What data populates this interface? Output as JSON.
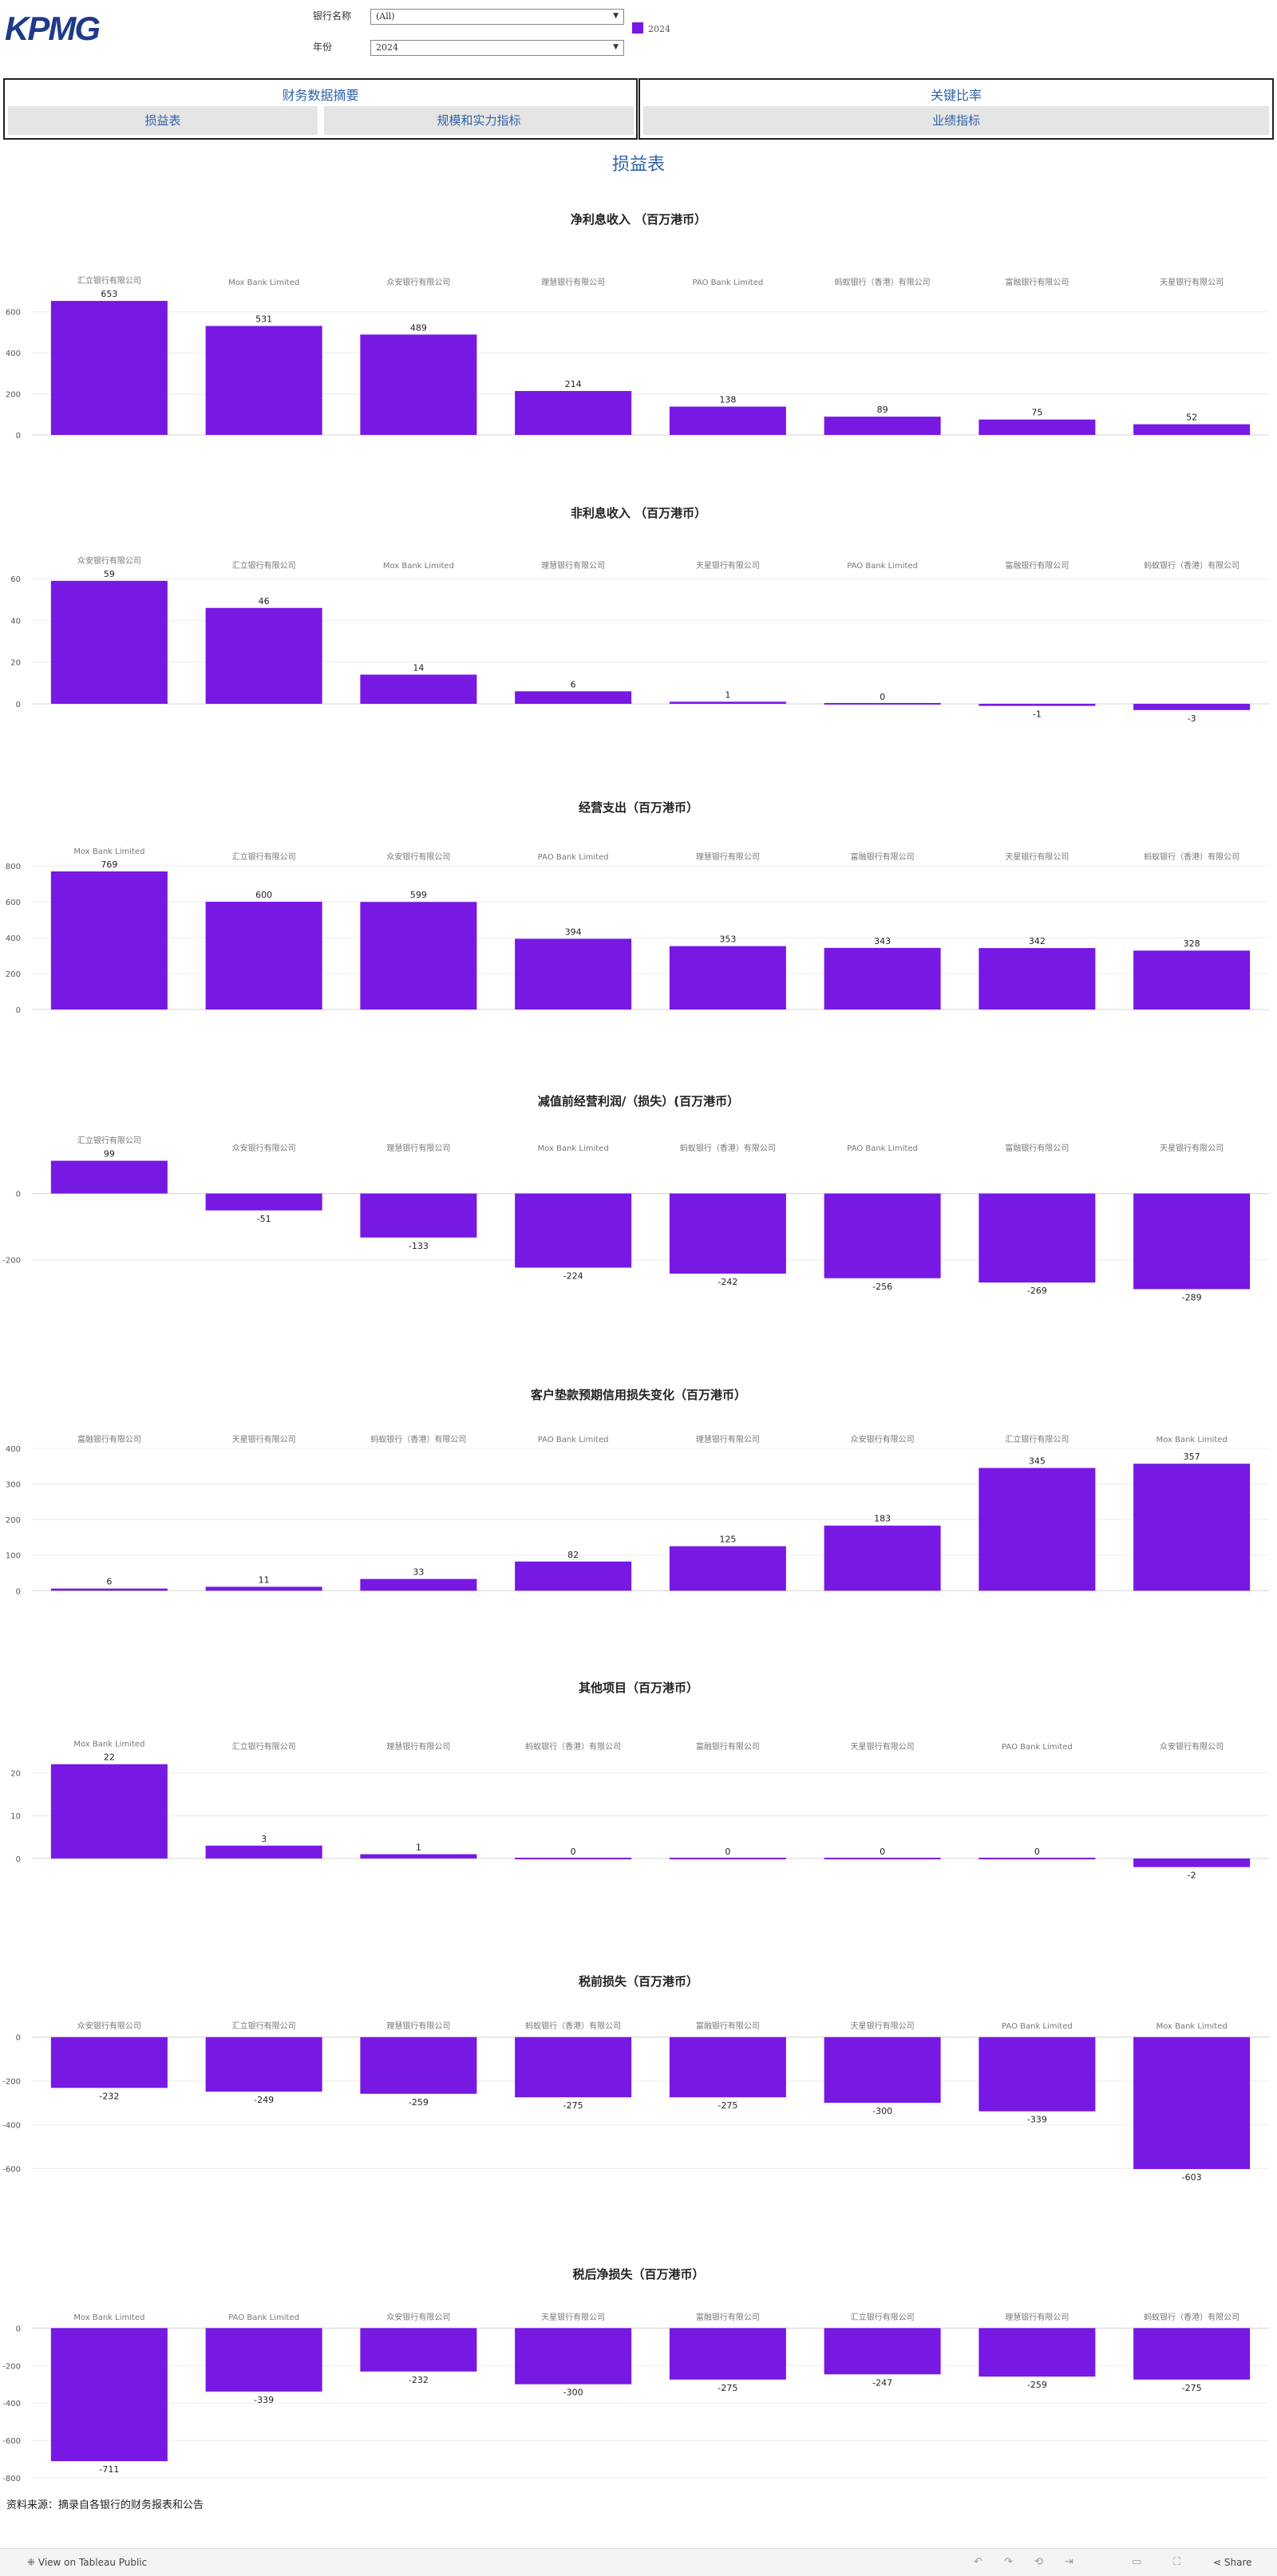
{
  "header": {
    "logo": "KPMG",
    "filters": [
      {
        "label": "银行名称",
        "value": "(All)"
      },
      {
        "label": "年份",
        "value": "2024"
      }
    ],
    "legend": {
      "label": "2024",
      "color": "#7718e3"
    }
  },
  "nav": {
    "groups": [
      {
        "title": "财务数据摘要",
        "tabs": [
          "损益表",
          "规模和实力指标"
        ]
      },
      {
        "title": "关键比率",
        "tabs": [
          "业绩指标"
        ]
      }
    ]
  },
  "page_title": "损益表",
  "chart_data": [
    {
      "type": "bar",
      "title": "净利息收入 （百万港币）",
      "categories": [
        "汇立银行有限公司",
        "Mox Bank Limited",
        "众安银行有限公司",
        "理慧银行有限公司",
        "PAO Bank Limited",
        "蚂蚁银行（香港）有限公司",
        "富融银行有限公司",
        "天星银行有限公司"
      ],
      "values": [
        653,
        531,
        489,
        214,
        138,
        89,
        75,
        52
      ],
      "ylim": [
        0,
        700
      ],
      "yticks": [
        0,
        200,
        400,
        600
      ],
      "grid": true
    },
    {
      "type": "bar",
      "title": "非利息收入 （百万港币）",
      "categories": [
        "众安银行有限公司",
        "汇立银行有限公司",
        "Mox Bank Limited",
        "理慧银行有限公司",
        "天星银行有限公司",
        "PAO Bank Limited",
        "富融银行有限公司",
        "蚂蚁银行（香港）有限公司"
      ],
      "values": [
        59,
        46,
        14,
        6,
        1,
        0,
        -1,
        -3
      ],
      "ylim": [
        -5,
        62
      ],
      "yticks": [
        0,
        20,
        40,
        60
      ],
      "grid": true
    },
    {
      "type": "bar",
      "title": "经营支出（百万港币）",
      "categories": [
        "Mox Bank Limited",
        "汇立银行有限公司",
        "众安银行有限公司",
        "PAO Bank Limited",
        "理慧银行有限公司",
        "富融银行有限公司",
        "天星银行有限公司",
        "蚂蚁银行（香港）有限公司"
      ],
      "values": [
        769,
        600,
        599,
        394,
        353,
        343,
        342,
        328
      ],
      "ylim": [
        0,
        800
      ],
      "yticks": [
        0,
        200,
        400,
        600,
        800
      ],
      "grid": true
    },
    {
      "type": "bar",
      "title": "减值前经营利润/（损失）(百万港币）",
      "categories": [
        "汇立银行有限公司",
        "众安银行有限公司",
        "理慧银行有限公司",
        "Mox Bank Limited",
        "蚂蚁银行（香港）有限公司",
        "PAO Bank Limited",
        "富融银行有限公司",
        "天星银行有限公司"
      ],
      "values": [
        99,
        -51,
        -133,
        -224,
        -242,
        -256,
        -269,
        -289
      ],
      "ylim": [
        -300,
        110
      ],
      "yticks": [
        -200,
        0
      ],
      "grid": true
    },
    {
      "type": "bar",
      "title": "客户垫款预期信用损失变化（百万港币）",
      "categories": [
        "富融银行有限公司",
        "天星银行有限公司",
        "蚂蚁银行（香港）有限公司",
        "PAO Bank Limited",
        "理慧银行有限公司",
        "众安银行有限公司",
        "汇立银行有限公司",
        "Mox Bank Limited"
      ],
      "values": [
        6,
        11,
        33,
        82,
        125,
        183,
        345,
        357
      ],
      "ylim": [
        -15,
        400
      ],
      "yticks": [
        0,
        100,
        200,
        300,
        400
      ],
      "grid": true
    },
    {
      "type": "bar",
      "title": "其他项目（百万港币）",
      "categories": [
        "Mox Bank Limited",
        "汇立银行有限公司",
        "理慧银行有限公司",
        "蚂蚁银行（香港）有限公司",
        "富融银行有限公司",
        "天星银行有限公司",
        "PAO Bank Limited",
        "众安银行有限公司"
      ],
      "values": [
        22,
        3,
        1,
        0,
        0,
        0,
        0,
        -2
      ],
      "ylim": [
        -3,
        24
      ],
      "yticks": [
        0,
        10,
        20
      ],
      "grid": true
    },
    {
      "type": "bar",
      "title": "税前损失（百万港币）",
      "categories": [
        "众安银行有限公司",
        "汇立银行有限公司",
        "理慧银行有限公司",
        "蚂蚁银行（香港）有限公司",
        "富融银行有限公司",
        "天星银行有限公司",
        "PAO Bank Limited",
        "Mox Bank Limited"
      ],
      "values": [
        -232,
        -249,
        -259,
        -275,
        -275,
        -300,
        -339,
        -603
      ],
      "ylim": [
        -610,
        10
      ],
      "yticks": [
        -600,
        -400,
        -200,
        0
      ],
      "grid": true
    },
    {
      "type": "bar",
      "title": "税后净损失（百万港币）",
      "categories": [
        "Mox Bank Limited",
        "PAO Bank Limited",
        "众安银行有限公司",
        "天星银行有限公司",
        "富融银行有限公司",
        "汇立银行有限公司",
        "理慧银行有限公司",
        "蚂蚁银行（香港）有限公司"
      ],
      "values": [
        -711,
        -339,
        -232,
        -300,
        -275,
        -247,
        -259,
        -275
      ],
      "ylim": [
        -800,
        10
      ],
      "yticks": [
        -800,
        -600,
        -400,
        -200,
        0
      ],
      "grid": true
    }
  ],
  "source": "资料来源：摘录自各银行的财务报表和公告",
  "footer": {
    "view_label": "View on Tableau Public",
    "share_label": "Share"
  }
}
